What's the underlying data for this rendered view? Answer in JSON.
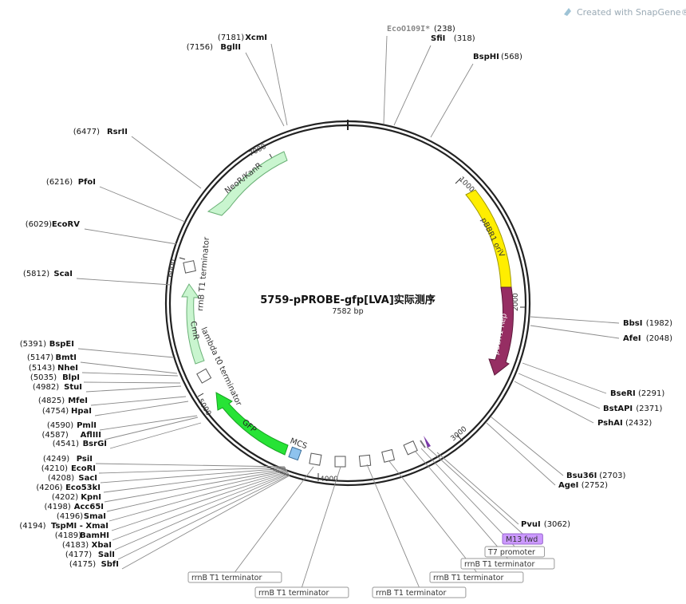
{
  "watermark": "Created with SnapGene®",
  "title": "5759-pPROBE-gfp[LVA]实际测序",
  "length": "7582 bp",
  "ruler": [
    "1000",
    "2000",
    "3000",
    "4000",
    "5000",
    "6000",
    "7000"
  ],
  "features": [
    "NeoR/KanR",
    "pBBR1 oriV",
    "pBBR1 Rep",
    "GFP",
    "CmR"
  ],
  "mcs_label": "MCS",
  "inner_labels": [
    "rrnB T1 terminator",
    "lambda t0 terminator"
  ],
  "sites": {
    "right": [
      {
        "name": "EcoO109I*",
        "pos": "(238)",
        "grey": true
      },
      {
        "name": "SfiI",
        "pos": "(318)"
      },
      {
        "name": "BspHI",
        "pos": "(568)"
      },
      {
        "name": "BbsI",
        "pos": "(1982)"
      },
      {
        "name": "AfeI",
        "pos": "(2048)"
      },
      {
        "name": "BseRI",
        "pos": "(2291)"
      },
      {
        "name": "BstAPI",
        "pos": "(2371)"
      },
      {
        "name": "PshAI",
        "pos": "(2432)"
      },
      {
        "name": "Bsu36I",
        "pos": "(2703)"
      },
      {
        "name": "AgeI",
        "pos": "(2752)"
      },
      {
        "name": "PvuI",
        "pos": "(3062)"
      }
    ],
    "left": [
      {
        "name": "XcmI",
        "pos": "(7181)"
      },
      {
        "name": "BglII",
        "pos": "(7156)"
      },
      {
        "name": "RsrII",
        "pos": "(6477)"
      },
      {
        "name": "PfoI",
        "pos": "(6216)"
      },
      {
        "name": "EcoRV",
        "pos": "(6029)"
      },
      {
        "name": "ScaI",
        "pos": "(5812)"
      },
      {
        "name": "BspEI",
        "pos": "(5391)"
      },
      {
        "name": "BmtI",
        "pos": "(5147)"
      },
      {
        "name": "NheI",
        "pos": "(5143)"
      },
      {
        "name": "BlpI",
        "pos": "(5035)"
      },
      {
        "name": "StuI",
        "pos": "(4982)"
      },
      {
        "name": "MfeI",
        "pos": "(4825)"
      },
      {
        "name": "HpaI",
        "pos": "(4754)"
      },
      {
        "name": "PmlI",
        "pos": "(4590)"
      },
      {
        "name": "AflIII",
        "pos": "(4587)"
      },
      {
        "name": "BsrGI",
        "pos": "(4541)"
      },
      {
        "name": "PsiI",
        "pos": "(4249)"
      },
      {
        "name": "EcoRI",
        "pos": "(4210)"
      },
      {
        "name": "SacI",
        "pos": "(4208)"
      },
      {
        "name": "Eco53kI",
        "pos": "(4206)"
      },
      {
        "name": "KpnI",
        "pos": "(4202)"
      },
      {
        "name": "Acc65I",
        "pos": "(4198)"
      },
      {
        "name": "SmaI",
        "pos": "(4196)"
      },
      {
        "name": "TspMI - XmaI",
        "pos": "(4194)"
      },
      {
        "name": "BamHI",
        "pos": "(4189)"
      },
      {
        "name": "XbaI",
        "pos": "(4183)"
      },
      {
        "name": "SalI",
        "pos": "(4177)"
      },
      {
        "name": "SbfI",
        "pos": "(4175)"
      }
    ]
  },
  "boxed_labels": [
    {
      "text": "M13 fwd",
      "purple": true
    },
    {
      "text": "T7 promoter"
    },
    {
      "text": "rrnB T1 terminator"
    },
    {
      "text": "rrnB T1 terminator"
    },
    {
      "text": "rrnB T1 terminator"
    },
    {
      "text": "rrnB T1 terminator"
    },
    {
      "text": "rrnB T1 terminator"
    }
  ],
  "colors": {
    "backbone": "#222222",
    "kan": "#c9f5cf",
    "oriv": "#ffee00",
    "rep": "#962e63",
    "gfp": "#27e336",
    "mcs": "#8ec3ee",
    "m13": "#cc99ff"
  }
}
